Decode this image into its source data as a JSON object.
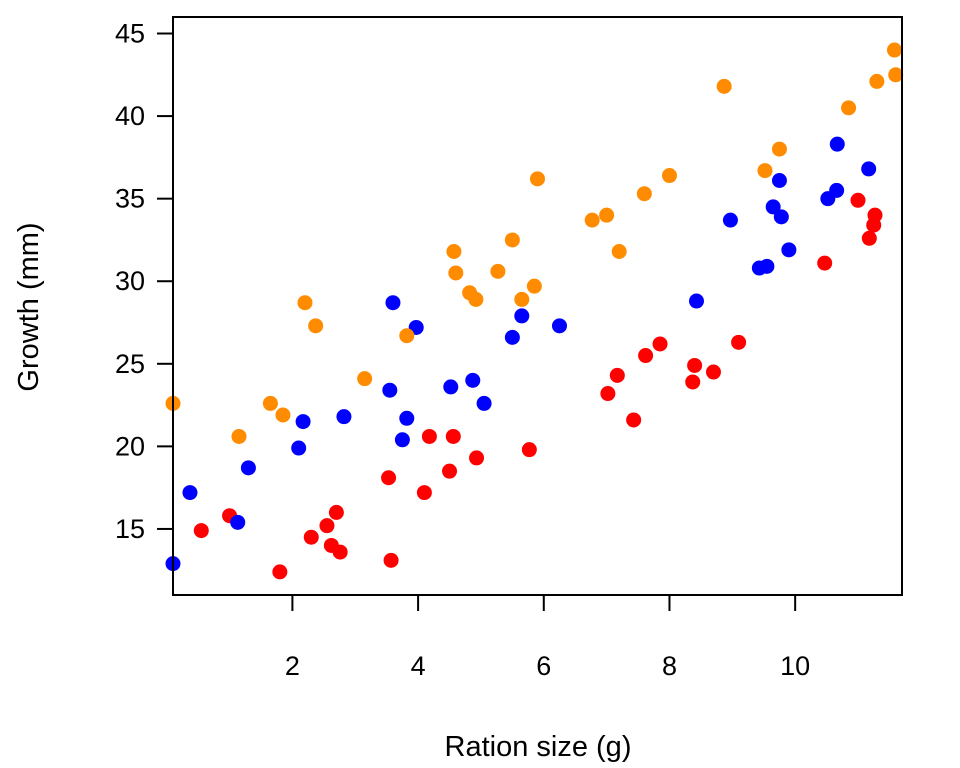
{
  "chart_data": {
    "type": "scatter",
    "title": "",
    "xlabel": "Ration size (g)",
    "ylabel": "Growth (mm)",
    "xlim": [
      0.1,
      11.7
    ],
    "ylim": [
      11.0,
      46.0
    ],
    "x_ticks": [
      2,
      4,
      6,
      8,
      10
    ],
    "y_ticks": [
      15,
      20,
      25,
      30,
      35,
      40,
      45
    ],
    "grid": false,
    "legend": "none",
    "series": [
      {
        "color": "#ff0000",
        "points": [
          [
            0.55,
            14.9
          ],
          [
            1.0,
            15.8
          ],
          [
            1.8,
            12.4
          ],
          [
            2.3,
            14.5
          ],
          [
            2.55,
            15.2
          ],
          [
            2.62,
            14.0
          ],
          [
            2.7,
            16.0
          ],
          [
            2.76,
            13.6
          ],
          [
            3.53,
            18.1
          ],
          [
            3.57,
            13.1
          ],
          [
            4.1,
            17.2
          ],
          [
            4.18,
            20.6
          ],
          [
            4.5,
            18.5
          ],
          [
            4.56,
            20.6
          ],
          [
            4.93,
            19.3
          ],
          [
            5.77,
            19.8
          ],
          [
            7.02,
            23.2
          ],
          [
            7.17,
            24.3
          ],
          [
            7.43,
            21.6
          ],
          [
            7.62,
            25.5
          ],
          [
            7.85,
            26.2
          ],
          [
            8.37,
            23.9
          ],
          [
            8.4,
            24.9
          ],
          [
            8.7,
            24.5
          ],
          [
            9.1,
            26.3
          ],
          [
            10.47,
            31.1
          ],
          [
            11.0,
            34.9
          ],
          [
            11.18,
            32.6
          ],
          [
            11.25,
            33.4
          ],
          [
            11.27,
            34.0
          ]
        ]
      },
      {
        "color": "#0000ff",
        "points": [
          [
            0.1,
            12.9
          ],
          [
            0.37,
            17.2
          ],
          [
            1.13,
            15.4
          ],
          [
            1.3,
            18.7
          ],
          [
            2.1,
            19.9
          ],
          [
            2.17,
            21.5
          ],
          [
            2.82,
            21.8
          ],
          [
            3.55,
            23.4
          ],
          [
            3.6,
            28.7
          ],
          [
            3.75,
            20.4
          ],
          [
            3.82,
            21.7
          ],
          [
            3.97,
            27.2
          ],
          [
            4.52,
            23.6
          ],
          [
            4.87,
            24.0
          ],
          [
            5.05,
            22.6
          ],
          [
            5.5,
            26.6
          ],
          [
            5.65,
            27.9
          ],
          [
            6.25,
            27.3
          ],
          [
            8.43,
            28.8
          ],
          [
            8.97,
            33.7
          ],
          [
            9.43,
            30.8
          ],
          [
            9.55,
            30.9
          ],
          [
            9.65,
            34.5
          ],
          [
            9.75,
            36.1
          ],
          [
            9.78,
            33.9
          ],
          [
            9.9,
            31.9
          ],
          [
            10.52,
            35.0
          ],
          [
            10.66,
            35.5
          ],
          [
            10.67,
            38.3
          ],
          [
            11.17,
            36.8
          ]
        ]
      },
      {
        "color": "#ff8c00",
        "points": [
          [
            0.1,
            22.6
          ],
          [
            1.15,
            20.6
          ],
          [
            1.65,
            22.6
          ],
          [
            1.85,
            21.9
          ],
          [
            2.2,
            28.7
          ],
          [
            2.37,
            27.3
          ],
          [
            3.15,
            24.1
          ],
          [
            3.82,
            26.7
          ],
          [
            4.57,
            31.8
          ],
          [
            4.6,
            30.5
          ],
          [
            4.82,
            29.3
          ],
          [
            4.92,
            28.9
          ],
          [
            5.27,
            30.6
          ],
          [
            5.5,
            32.5
          ],
          [
            5.65,
            28.9
          ],
          [
            5.85,
            29.7
          ],
          [
            5.9,
            36.2
          ],
          [
            6.77,
            33.7
          ],
          [
            7.0,
            34.0
          ],
          [
            7.2,
            31.8
          ],
          [
            7.6,
            35.3
          ],
          [
            8.0,
            36.4
          ],
          [
            8.87,
            41.8
          ],
          [
            9.52,
            36.7
          ],
          [
            9.75,
            38.0
          ],
          [
            10.85,
            40.5
          ],
          [
            11.3,
            42.1
          ],
          [
            11.58,
            44.0
          ],
          [
            11.6,
            42.5
          ]
        ]
      }
    ]
  }
}
